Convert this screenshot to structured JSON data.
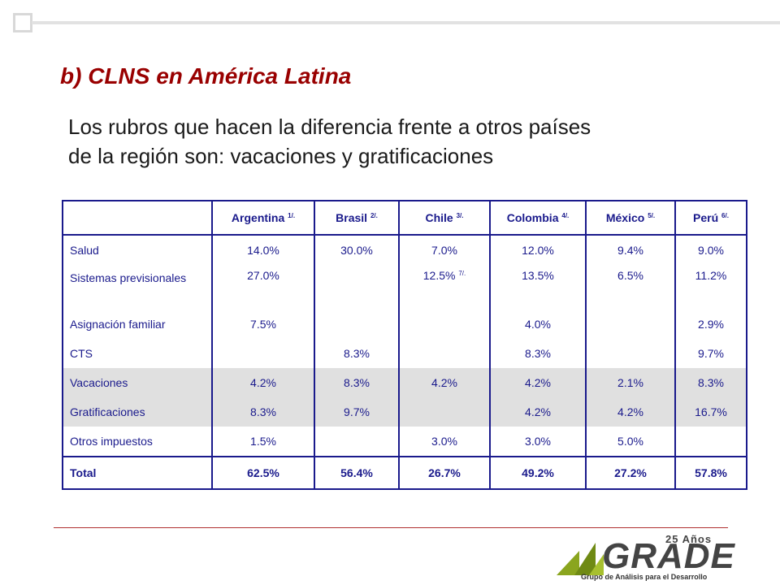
{
  "title": "b) CLNS en América Latina",
  "subtitle": {
    "line1": "Los rubros que hacen la diferencia frente a otros países",
    "line2": "de la región son: vacaciones y gratificaciones"
  },
  "table": {
    "headers": [
      {
        "label": "Argentina",
        "note": "1/."
      },
      {
        "label": "Brasil",
        "note": "2/."
      },
      {
        "label": "Chile",
        "note": "3/."
      },
      {
        "label": "Colombia",
        "note": "4/."
      },
      {
        "label": "México",
        "note": "5/."
      },
      {
        "label": "Perú",
        "note": "6/."
      }
    ],
    "rows": [
      {
        "label": "Salud",
        "values": [
          "14.0%",
          "30.0%",
          "7.0%",
          "12.0%",
          "9.4%",
          "9.0%"
        ]
      },
      {
        "label": "Sistemas previsionales",
        "values": [
          "27.0%",
          "",
          "12.5%",
          "13.5%",
          "6.5%",
          "11.2%"
        ],
        "chile_note": "7/."
      },
      {
        "label": "Asignación familiar",
        "values": [
          "7.5%",
          "",
          "",
          "4.0%",
          "",
          "2.9%"
        ]
      },
      {
        "label": "CTS",
        "values": [
          "",
          "8.3%",
          "",
          "8.3%",
          "",
          "9.7%"
        ]
      },
      {
        "label": "Vacaciones",
        "values": [
          "4.2%",
          "8.3%",
          "4.2%",
          "4.2%",
          "2.1%",
          "8.3%"
        ]
      },
      {
        "label": "Gratificaciones",
        "values": [
          "8.3%",
          "9.7%",
          "",
          "4.2%",
          "4.2%",
          "16.7%"
        ]
      },
      {
        "label": "Otros impuestos",
        "values": [
          "1.5%",
          "",
          "3.0%",
          "3.0%",
          "5.0%",
          ""
        ]
      }
    ],
    "total": {
      "label": "Total",
      "values": [
        "62.5%",
        "56.4%",
        "26.7%",
        "49.2%",
        "27.2%",
        "57.8%"
      ]
    }
  },
  "logo": {
    "anniversary": "25 Años",
    "name": "GRADE",
    "tagline": "Grupo de Análisis para el Desarrollo"
  },
  "colors": {
    "title": "#990000",
    "table_text": "#1a1a8c",
    "highlight_row": "#e0e0e0",
    "logo_green": "#8aa51e"
  }
}
